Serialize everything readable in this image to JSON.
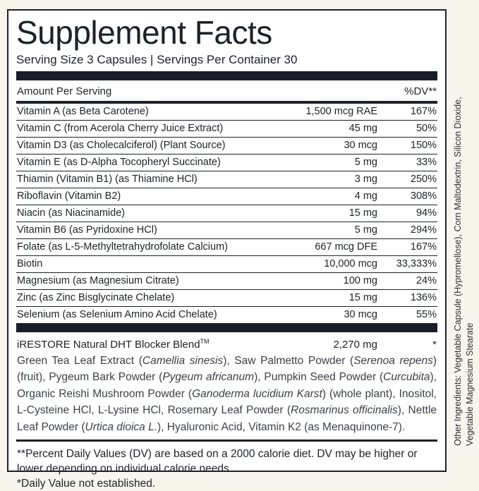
{
  "colors": {
    "page_background": "#f8f5ec",
    "panel_background": "#ffffff",
    "ink": "#1e2129",
    "bar": "#1b1e27"
  },
  "panel": {
    "title": "Supplement Facts",
    "serving_line": "Serving Size 3 Capsules | Servings Per Container 30",
    "columns": {
      "amount_header": "Amount Per Serving",
      "dv_header": "%DV**"
    },
    "rows": [
      {
        "name": "Vitamin A (as Beta Carotene)",
        "amount": "1,500 mcg RAE",
        "dv": "167%"
      },
      {
        "name": "Vitamin C (from Acerola Cherry Juice Extract)",
        "amount": "45 mg",
        "dv": "50%"
      },
      {
        "name": "Vitamin D3 (as Cholecalciferol) (Plant Source)",
        "amount": "30 mcg",
        "dv": "150%"
      },
      {
        "name": "Vitamin E (as D-Alpha Tocopheryl Succinate)",
        "amount": "5 mg",
        "dv": "33%"
      },
      {
        "name": "Thiamin (Vitamin B1) (as Thiamine HCl)",
        "amount": "3 mg",
        "dv": "250%"
      },
      {
        "name": "Riboflavin (Vitamin B2)",
        "amount": "4 mg",
        "dv": "308%"
      },
      {
        "name": "Niacin (as Niacinamide)",
        "amount": "15 mg",
        "dv": "94%"
      },
      {
        "name": "Vitamin B6 (as Pyridoxine HCl)",
        "amount": "5 mg",
        "dv": "294%"
      },
      {
        "name": "Folate (as L-5-Methyltetrahydrofolate Calcium)",
        "amount": "667 mcg DFE",
        "dv": "167%"
      },
      {
        "name": "Biotin",
        "amount": "10,000 mcg",
        "dv": "33,333%"
      },
      {
        "name": "Magnesium (as Magnesium Citrate)",
        "amount": "100 mg",
        "dv": "24%"
      },
      {
        "name": "Zinc (as Zinc Bisglycinate Chelate)",
        "amount": "15 mg",
        "dv": "136%"
      },
      {
        "name": "Selenium (as Selenium Amino Acid Chelate)",
        "amount": "30 mcg",
        "dv": "55%"
      }
    ],
    "blend": {
      "name": "iRESTORE Natural DHT Blocker Blend",
      "trademark": "TM",
      "amount": "2,270 mg",
      "dv": "*",
      "description": [
        {
          "text": "Green Tea Leaf Extract (",
          "italic": false
        },
        {
          "text": "Camellia sinesis",
          "italic": true
        },
        {
          "text": "), Saw Palmetto Powder (",
          "italic": false
        },
        {
          "text": "Serenoa repens",
          "italic": true
        },
        {
          "text": ") (fruit), Pygeum Bark Powder (",
          "italic": false
        },
        {
          "text": "Pygeum africanum",
          "italic": true
        },
        {
          "text": "), Pumpkin Seed Powder (",
          "italic": false
        },
        {
          "text": "Curcubita",
          "italic": true
        },
        {
          "text": "), Organic Reishi Mushroom Powder (",
          "italic": false
        },
        {
          "text": "Ganoderma lucidium Karst",
          "italic": true
        },
        {
          "text": ") (whole plant), Inositol, L-Cysteine HCl, L-Lysine HCl, Rosemary Leaf Powder (",
          "italic": false
        },
        {
          "text": "Rosmarinus officinalis",
          "italic": true
        },
        {
          "text": "), Nettle Leaf Powder (",
          "italic": false
        },
        {
          "text": "Urtica dioica L.",
          "italic": true
        },
        {
          "text": "), Hyaluronic Acid, Vitamin K2 (as Menaquinone-7).",
          "italic": false
        }
      ]
    },
    "footnotes": {
      "percent_dv": "**Percent Daily Values (DV) are based on a 2000 calorie diet. DV may be higher or lower depending on individual calorie needs.",
      "daily_value": "*Daily Value not established."
    }
  },
  "side_text": {
    "line1": "Other Ingredients: Vegetable Capsule (Hypromellose), Corn Maltodextrin, Silicon Dioxide,",
    "line2": "Vegetable Magnesium Stearate"
  }
}
